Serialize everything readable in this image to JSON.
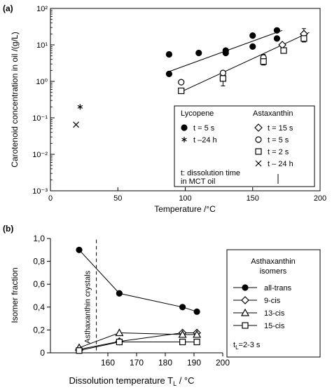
{
  "chart_data": [
    {
      "panel_label": "(a)",
      "type": "scatter",
      "xlabel": "Temperature /°C",
      "ylabel": "Carotenoid concentration in oil /(g/L)",
      "yscale": "log",
      "xlim": [
        0,
        200
      ],
      "ylim": [
        0.001,
        100
      ],
      "x_ticks": [
        "0",
        "50",
        "100",
        "150",
        "200"
      ],
      "y_ticks": [
        "10⁻³",
        "10⁻²",
        "10⁻¹",
        "10⁰",
        "10¹",
        "10²"
      ],
      "series": [
        {
          "name": "t = 5 s",
          "group": "Lycopene",
          "marker": "filled-circle",
          "x": [
            88,
            88,
            110,
            130,
            130,
            150,
            150,
            168,
            168
          ],
          "y": [
            5.5,
            1.6,
            6.0,
            6.0,
            7.0,
            18.0,
            9.0,
            25.0,
            15.0
          ]
        },
        {
          "name": "t –24 h",
          "group": "Lycopene",
          "marker": "asterisk",
          "x": [
            22
          ],
          "y": [
            0.2
          ]
        },
        {
          "name": "t = 15 s",
          "group": "Astaxanthin",
          "marker": "diamond",
          "x": [
            172,
            188
          ],
          "y": [
            10.0,
            20.0
          ]
        },
        {
          "name": "t = 5 s",
          "group": "Astaxanthin",
          "marker": "open-circle",
          "x": [
            97,
            128,
            158
          ],
          "y": [
            0.95,
            1.7,
            4.5
          ]
        },
        {
          "name": "t = 2 s",
          "group": "Astaxanthin",
          "marker": "square",
          "x": [
            97,
            128,
            158,
            173,
            188
          ],
          "y": [
            0.55,
            1.2,
            3.5,
            7.0,
            15.0
          ]
        },
        {
          "name": "t – 24 h",
          "group": "Astaxanthin",
          "marker": "x",
          "x": [
            19
          ],
          "y": [
            0.065
          ]
        }
      ],
      "trend_lines": [
        {
          "x": [
            87,
            172
          ],
          "y": [
            1.8,
            25.0
          ]
        },
        {
          "x": [
            95,
            192
          ],
          "y": [
            0.48,
            22.0
          ]
        }
      ],
      "legend": {
        "group_1_title": "Lycopene",
        "group_2_title": "Astaxanthin",
        "note_line_1": "t: dissolution time",
        "note_line_2": "in MCT oil"
      }
    },
    {
      "panel_label": "(b)",
      "type": "line",
      "xlabel": "Dissolution temperature T",
      "xlabel_subscript": "L",
      "xlabel_unit": " / °C",
      "ylabel": "Isomer fraction",
      "xlim": [
        140,
        200
      ],
      "ylim": [
        0,
        1.0
      ],
      "x_ticks": [
        "160",
        "170",
        "180",
        "190",
        "200"
      ],
      "y_ticks": [
        "0",
        "0,2",
        "0,4",
        "0,6",
        "0,8",
        "1,0"
      ],
      "annotation": "Asthaxanthin crystals",
      "crystal_line_x": 156,
      "series": [
        {
          "name": "all-trans",
          "marker": "filled-circle",
          "x": [
            150,
            164,
            186,
            191
          ],
          "y": [
            0.9,
            0.52,
            0.4,
            0.36
          ]
        },
        {
          "name": "9-cis",
          "marker": "diamond",
          "x": [
            150,
            164,
            186,
            191
          ],
          "y": [
            0.03,
            0.1,
            0.175,
            0.175
          ]
        },
        {
          "name": "13-cis",
          "marker": "triangle",
          "x": [
            150,
            164,
            186,
            191
          ],
          "y": [
            0.045,
            0.175,
            0.16,
            0.16
          ]
        },
        {
          "name": "15-cis",
          "marker": "square",
          "x": [
            150,
            164,
            186,
            191
          ],
          "y": [
            0.02,
            0.095,
            0.095,
            0.095
          ]
        }
      ],
      "legend": {
        "title_line_1": "Asthaxanthin",
        "title_line_2": "isomers",
        "note": "t",
        "note_sub": "L",
        "note_value": "=2-3 s"
      }
    }
  ]
}
